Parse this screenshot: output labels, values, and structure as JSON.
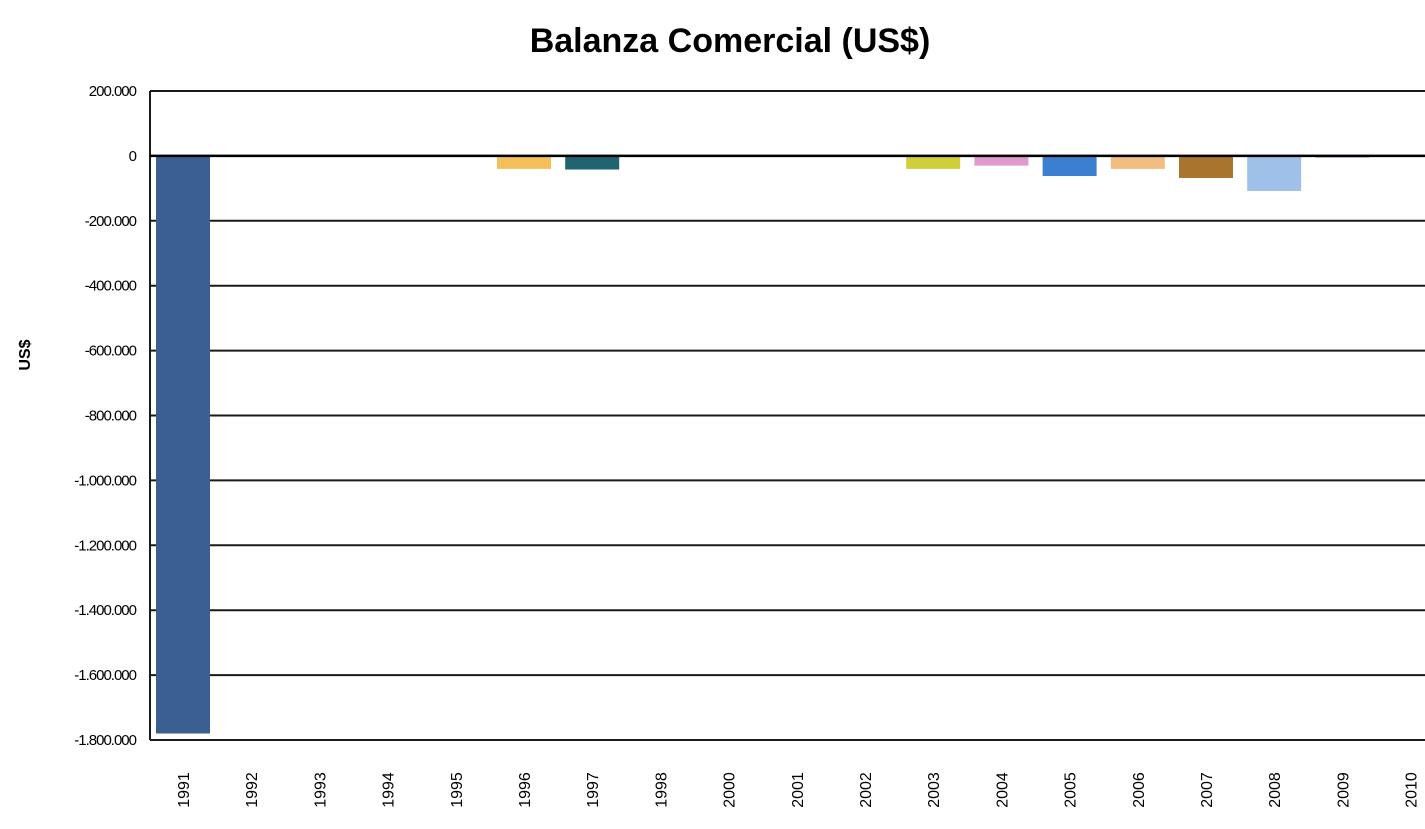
{
  "chart_data": {
    "type": "bar",
    "title": "Balanza Comercial (US$)",
    "xlabel": "",
    "ylabel": "US$",
    "ylim": [
      -1800000,
      200000
    ],
    "y_ticks": [
      200000,
      0,
      -200000,
      -400000,
      -600000,
      -800000,
      -1000000,
      -1200000,
      -1400000,
      -1600000,
      -1800000
    ],
    "y_tick_labels": [
      "200.000",
      "0",
      "-200.000",
      "-400.000",
      "-600.000",
      "-800.000",
      "-1.000.000",
      "-1.200.000",
      "-1.400.000",
      "-1.600.000",
      "-1.800.000"
    ],
    "grid": true,
    "legend": "none",
    "categories": [
      "1991",
      "1992",
      "1993",
      "1994",
      "1995",
      "1996",
      "1997",
      "1998",
      "2000",
      "2001",
      "2002",
      "2003",
      "2004",
      "2005",
      "2006",
      "2007",
      "2008",
      "2009",
      "2010"
    ],
    "values": [
      -1780000,
      0,
      0,
      0,
      0,
      -40000,
      -42000,
      0,
      0,
      0,
      0,
      -40000,
      -30000,
      -62000,
      -40000,
      -68000,
      -108000,
      -5000,
      -3000
    ],
    "colors": [
      "#3b5f91",
      "#3b5f91",
      "#3b5f91",
      "#3b5f91",
      "#3b5f91",
      "#f5c05a",
      "#1f6470",
      "#3b5f91",
      "#3b5f91",
      "#3b5f91",
      "#3b5f91",
      "#cfcf3a",
      "#e09ad0",
      "#3b7fd0",
      "#f2bd7e",
      "#a8742e",
      "#9fc0e8",
      "#6f8fb0",
      "#555555"
    ]
  }
}
